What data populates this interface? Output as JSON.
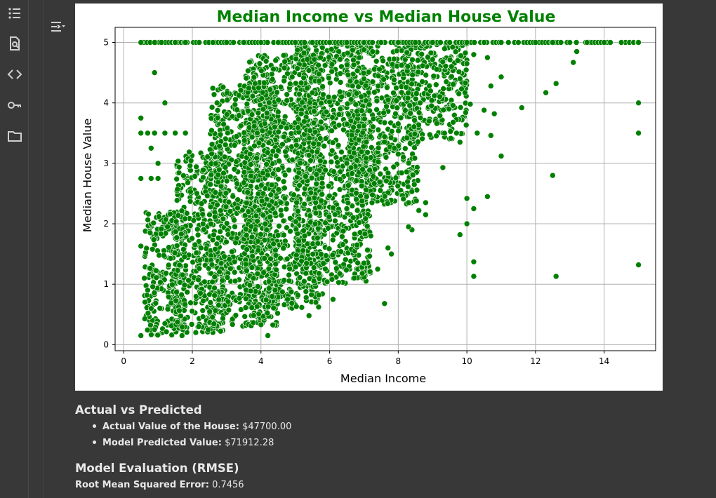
{
  "sidebar": {
    "items": [
      {
        "icon": "table-of-contents-icon"
      },
      {
        "icon": "find-replace-icon"
      },
      {
        "icon": "code-snippets-icon"
      },
      {
        "icon": "secrets-key-icon"
      },
      {
        "icon": "files-folder-icon"
      }
    ]
  },
  "output_toggle": {
    "icon": "output-toggle-icon"
  },
  "chart_data": {
    "type": "scatter",
    "title": "Median Income vs Median House Value",
    "xlabel": "Median Income",
    "ylabel": "Median House Value",
    "xlim": [
      -0.25,
      15.5
    ],
    "ylim": [
      -0.1,
      5.25
    ],
    "xticks": [
      "0",
      "2",
      "4",
      "6",
      "8",
      "10",
      "12",
      "14"
    ],
    "yticks": [
      "0",
      "1",
      "2",
      "3",
      "4",
      "5"
    ],
    "grid": true,
    "color": "#008000",
    "title_color": "#008000",
    "note": "dense cloud of ~20,000 points; representative sample listed plus a cap line at 5.0",
    "series": [
      {
        "points": [
          [
            0.5,
            5.0
          ],
          [
            0.9,
            5.0
          ],
          [
            1.1,
            5.0
          ],
          [
            1.5,
            5.0
          ],
          [
            1.8,
            5.0
          ],
          [
            2.2,
            5.0
          ],
          [
            2.6,
            5.0
          ],
          [
            3.0,
            5.0
          ],
          [
            3.5,
            5.0
          ],
          [
            4.0,
            5.0
          ],
          [
            4.5,
            5.0
          ],
          [
            5.0,
            5.0
          ],
          [
            5.5,
            5.0
          ],
          [
            6.0,
            5.0
          ],
          [
            6.5,
            5.0
          ],
          [
            7.0,
            5.0
          ],
          [
            7.5,
            5.0
          ],
          [
            8.0,
            5.0
          ],
          [
            8.5,
            5.0
          ],
          [
            9.0,
            5.0
          ],
          [
            9.5,
            5.0
          ],
          [
            10.0,
            5.0
          ],
          [
            10.5,
            5.0
          ],
          [
            11.0,
            5.0
          ],
          [
            11.5,
            5.0
          ],
          [
            12.0,
            5.0
          ],
          [
            12.5,
            5.0
          ],
          [
            13.0,
            5.0
          ],
          [
            13.5,
            5.0
          ],
          [
            14.0,
            5.0
          ],
          [
            14.5,
            5.0
          ],
          [
            15.0,
            5.0
          ],
          [
            0.9,
            4.5
          ],
          [
            1.2,
            4.0
          ],
          [
            0.5,
            3.75
          ],
          [
            0.5,
            3.5
          ],
          [
            0.7,
            3.5
          ],
          [
            0.9,
            3.5
          ],
          [
            1.2,
            3.5
          ],
          [
            1.5,
            3.5
          ],
          [
            1.8,
            3.5
          ],
          [
            0.8,
            3.25
          ],
          [
            1.0,
            3.0
          ],
          [
            0.5,
            2.75
          ],
          [
            0.8,
            2.75
          ],
          [
            1.0,
            2.75
          ],
          [
            0.5,
            1.63
          ],
          [
            0.6,
            1.1
          ],
          [
            0.7,
            0.9
          ],
          [
            0.8,
            0.6
          ],
          [
            0.5,
            0.15
          ],
          [
            0.9,
            0.25
          ],
          [
            1.2,
            0.35
          ],
          [
            1.7,
            0.15
          ],
          [
            2.1,
            0.2
          ],
          [
            4.2,
            0.15
          ],
          [
            4.0,
            0.33
          ],
          [
            5.4,
            0.48
          ],
          [
            7.6,
            0.68
          ],
          [
            6.1,
            0.75
          ],
          [
            5.6,
            0.7
          ],
          [
            9.3,
            2.93
          ],
          [
            9.8,
            1.82
          ],
          [
            10.0,
            2.0
          ],
          [
            10.0,
            2.42
          ],
          [
            10.2,
            2.25
          ],
          [
            10.6,
            2.45
          ],
          [
            10.2,
            1.13
          ],
          [
            10.2,
            1.37
          ],
          [
            11.0,
            3.12
          ],
          [
            10.7,
            3.46
          ],
          [
            10.3,
            3.5
          ],
          [
            11.6,
            3.92
          ],
          [
            12.3,
            4.17
          ],
          [
            12.6,
            4.32
          ],
          [
            13.1,
            4.67
          ],
          [
            13.2,
            4.85
          ],
          [
            11.0,
            4.43
          ],
          [
            12.5,
            2.8
          ],
          [
            12.6,
            1.13
          ],
          [
            15.0,
            1.32
          ],
          [
            15.0,
            3.5
          ],
          [
            15.0,
            4.0
          ],
          [
            8.8,
            2.35
          ],
          [
            8.8,
            2.15
          ],
          [
            8.6,
            2.22
          ],
          [
            8.3,
            2.35
          ],
          [
            8.4,
            1.9
          ],
          [
            8.3,
            1.95
          ],
          [
            7.7,
            1.6
          ],
          [
            7.8,
            1.5
          ],
          [
            7.4,
            1.25
          ],
          [
            7.0,
            1.35
          ],
          [
            7.2,
            1.8
          ],
          [
            6.8,
            1.65
          ],
          [
            6.5,
            2.25
          ],
          [
            6.5,
            3.0
          ],
          [
            6.4,
            1.88
          ],
          [
            9.7,
            3.5
          ],
          [
            9.8,
            3.35
          ],
          [
            9.6,
            3.68
          ],
          [
            9.4,
            4.35
          ],
          [
            9.8,
            4.4
          ],
          [
            10.1,
            3.98
          ],
          [
            10.5,
            3.88
          ],
          [
            10.8,
            3.82
          ],
          [
            10.7,
            4.28
          ],
          [
            10.6,
            4.75
          ],
          [
            10.2,
            4.8
          ],
          [
            10.0,
            4.65
          ]
        ]
      }
    ],
    "density_bands": [
      {
        "x_min": 0.6,
        "x_max": 1.8,
        "y_min": 0.15,
        "y_max": 2.2
      },
      {
        "x_min": 1.5,
        "x_max": 3.0,
        "y_min": 0.2,
        "y_max": 3.2
      },
      {
        "x_min": 2.5,
        "x_max": 4.5,
        "y_min": 0.3,
        "y_max": 4.3
      },
      {
        "x_min": 3.5,
        "x_max": 5.8,
        "y_min": 0.6,
        "y_max": 4.8
      },
      {
        "x_min": 5.0,
        "x_max": 7.2,
        "y_min": 1.0,
        "y_max": 5.0
      },
      {
        "x_min": 6.5,
        "x_max": 8.6,
        "y_min": 2.3,
        "y_max": 5.0
      },
      {
        "x_min": 8.2,
        "x_max": 10.0,
        "y_min": 3.4,
        "y_max": 5.0
      }
    ]
  },
  "output": {
    "section1_title": "Actual vs Predicted",
    "actual_label": "Actual Value of the House:",
    "actual_value": "$47700.00",
    "predicted_label": "Model Predicted Value:",
    "predicted_value": "$71912.28",
    "section2_title": "Model Evaluation (RMSE)",
    "rmse_label": "Root Mean Squared Error:",
    "rmse_value": "0.7456"
  }
}
